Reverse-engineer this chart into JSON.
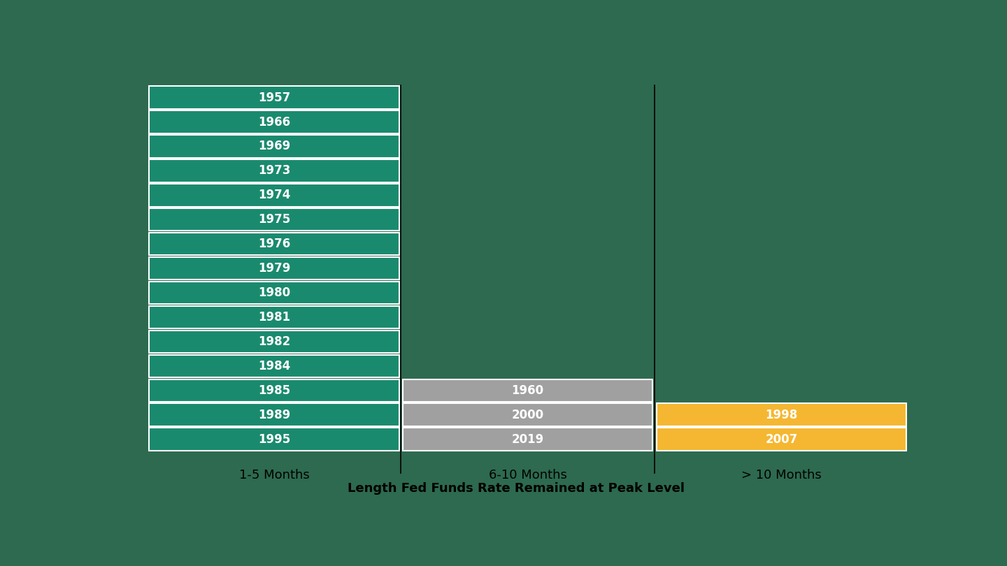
{
  "background_color": "#2d6a4f",
  "col1_label": "1-5 Months",
  "col2_label": "6-10 Months",
  "col3_label": "> 10 Months",
  "xlabel": "Length Fed Funds Rate Remained at Peak Level",
  "col1_years": [
    "1957",
    "1966",
    "1969",
    "1973",
    "1974",
    "1975",
    "1976",
    "1979",
    "1980",
    "1981",
    "1982",
    "1984",
    "1985",
    "1989",
    "1995"
  ],
  "col2_years": [
    "1960",
    "2000",
    "2019"
  ],
  "col3_years": [
    "1998",
    "2007"
  ],
  "col1_color": "#1a8a6e",
  "col2_color": "#a0a0a0",
  "col3_color": "#f5b731",
  "border_color": "#ffffff",
  "label_fontsize": 13,
  "year_fontsize": 12,
  "xlabel_fontsize": 13
}
